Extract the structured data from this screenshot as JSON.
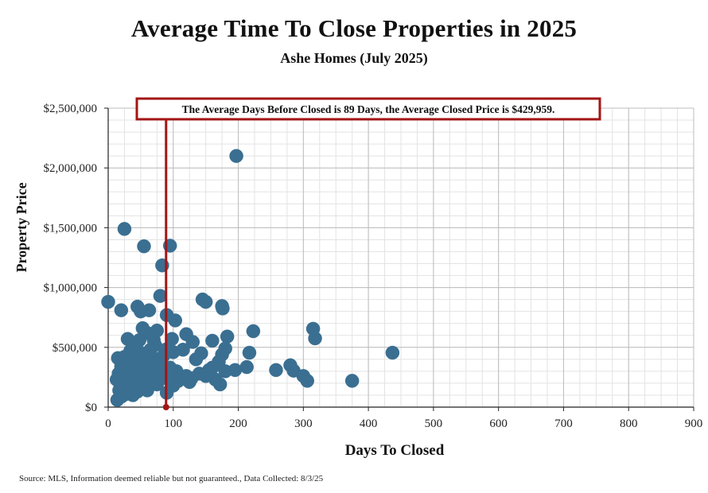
{
  "title": "Average Time To Close Properties in 2025",
  "subtitle": "Ashe Homes (July 2025)",
  "source": "Source: MLS, Information deemed reliable but not guaranteed., Data Collected: 8/3/25",
  "colors": {
    "point": "#3a6f91",
    "avg_line": "#a31515",
    "annotation_border": "#a31515",
    "grid_major": "#bdbdbd",
    "grid_minor": "#e3e3e3"
  },
  "chart_data": {
    "type": "scatter",
    "title": "Average Time To Close Properties in 2025",
    "subtitle": "Ashe Homes (July 2025)",
    "xlabel": "Days To Closed",
    "ylabel": "Property Price",
    "xlim": [
      0,
      900
    ],
    "ylim": [
      0,
      2500000
    ],
    "x_ticks": [
      0,
      100,
      200,
      300,
      400,
      500,
      600,
      700,
      800,
      900
    ],
    "x_tick_labels": [
      "0",
      "100",
      "200",
      "300",
      "400",
      "500",
      "600",
      "700",
      "800",
      "900"
    ],
    "y_ticks": [
      0,
      500000,
      1000000,
      1500000,
      2000000,
      2500000
    ],
    "y_tick_labels": [
      "$0",
      "$500,000",
      "$1,000,000",
      "$1,500,000",
      "$2,000,000",
      "$2,500,000"
    ],
    "grid": true,
    "average_days": 89,
    "average_price": 429959,
    "annotation": "The Average Days Before Closed is 89 Days, the Average Closed Price is $429,959.",
    "series": [
      {
        "name": "Closed Properties",
        "points": [
          [
            0,
            880000
          ],
          [
            20,
            810000
          ],
          [
            25,
            1490000
          ],
          [
            55,
            1345000
          ],
          [
            95,
            1350000
          ],
          [
            83,
            1185000
          ],
          [
            197,
            2100000
          ],
          [
            80,
            930000
          ],
          [
            45,
            840000
          ],
          [
            50,
            800000
          ],
          [
            63,
            810000
          ],
          [
            90,
            770000
          ],
          [
            103,
            725000
          ],
          [
            145,
            900000
          ],
          [
            150,
            880000
          ],
          [
            175,
            845000
          ],
          [
            176,
            825000
          ],
          [
            120,
            610000
          ],
          [
            130,
            545000
          ],
          [
            160,
            555000
          ],
          [
            183,
            590000
          ],
          [
            223,
            635000
          ],
          [
            315,
            655000
          ],
          [
            318,
            575000
          ],
          [
            437,
            455000
          ],
          [
            375,
            220000
          ],
          [
            300,
            260000
          ],
          [
            306,
            220000
          ],
          [
            280,
            350000
          ],
          [
            285,
            305000
          ],
          [
            258,
            310000
          ],
          [
            213,
            335000
          ],
          [
            217,
            455000
          ],
          [
            195,
            310000
          ],
          [
            180,
            490000
          ],
          [
            175,
            440000
          ],
          [
            172,
            190000
          ],
          [
            160,
            330000
          ],
          [
            150,
            260000
          ],
          [
            143,
            450000
          ],
          [
            135,
            400000
          ],
          [
            125,
            210000
          ],
          [
            115,
            480000
          ],
          [
            110,
            260000
          ],
          [
            105,
            300000
          ],
          [
            100,
            460000
          ],
          [
            98,
            570000
          ],
          [
            93,
            230000
          ],
          [
            90,
            120000
          ],
          [
            85,
            430000
          ],
          [
            80,
            360000
          ],
          [
            78,
            310000
          ],
          [
            75,
            640000
          ],
          [
            70,
            560000
          ],
          [
            68,
            200000
          ],
          [
            65,
            480000
          ],
          [
            62,
            280000
          ],
          [
            60,
            620000
          ],
          [
            58,
            380000
          ],
          [
            55,
            180000
          ],
          [
            53,
            660000
          ],
          [
            52,
            450000
          ],
          [
            50,
            320000
          ],
          [
            48,
            560000
          ],
          [
            46,
            240000
          ],
          [
            45,
            130000
          ],
          [
            43,
            500000
          ],
          [
            42,
            380000
          ],
          [
            40,
            270000
          ],
          [
            38,
            420000
          ],
          [
            36,
            170000
          ],
          [
            35,
            330000
          ],
          [
            34,
            470000
          ],
          [
            32,
            230000
          ],
          [
            30,
            570000
          ],
          [
            29,
            360000
          ],
          [
            28,
            110000
          ],
          [
            26,
            300000
          ],
          [
            25,
            420000
          ],
          [
            24,
            180000
          ],
          [
            22,
            260000
          ],
          [
            21,
            90000
          ],
          [
            20,
            340000
          ],
          [
            18,
            200000
          ],
          [
            17,
            140000
          ],
          [
            16,
            280000
          ],
          [
            15,
            410000
          ],
          [
            14,
            60000
          ],
          [
            13,
            230000
          ],
          [
            30,
            200000
          ],
          [
            35,
            260000
          ],
          [
            40,
            150000
          ],
          [
            45,
            300000
          ],
          [
            55,
            250000
          ],
          [
            60,
            140000
          ],
          [
            65,
            340000
          ],
          [
            70,
            290000
          ],
          [
            75,
            190000
          ],
          [
            85,
            270000
          ],
          [
            95,
            330000
          ],
          [
            100,
            180000
          ],
          [
            120,
            260000
          ],
          [
            140,
            280000
          ],
          [
            155,
            310000
          ],
          [
            165,
            230000
          ],
          [
            170,
            380000
          ],
          [
            180,
            300000
          ],
          [
            38,
            100000
          ],
          [
            48,
            200000
          ],
          [
            58,
            400000
          ],
          [
            66,
            430000
          ],
          [
            72,
            520000
          ],
          [
            88,
            480000
          ],
          [
            108,
            220000
          ],
          [
            128,
            240000
          ]
        ]
      }
    ]
  }
}
